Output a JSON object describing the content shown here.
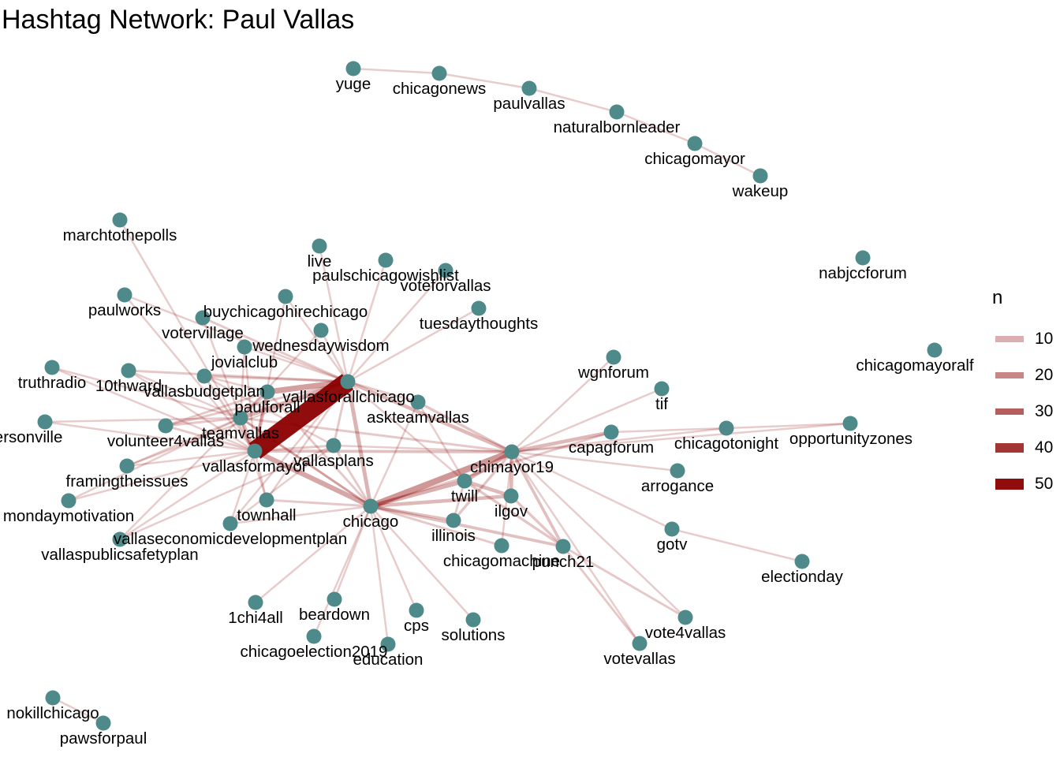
{
  "title": "Hashtag Network: Paul Vallas",
  "node_color": "#4f8a8b",
  "edge_color": "#8b0000",
  "legend": {
    "title": "n",
    "entries": [
      {
        "label": "10",
        "value": 10
      },
      {
        "label": "20",
        "value": 20
      },
      {
        "label": "30",
        "value": 30
      },
      {
        "label": "40",
        "value": 40
      },
      {
        "label": "50",
        "value": 50
      }
    ]
  },
  "nodes": [
    {
      "id": "yuge",
      "label": "yuge"
    },
    {
      "id": "chicagonews",
      "label": "chicagonews"
    },
    {
      "id": "paulvallas",
      "label": "paulvallas"
    },
    {
      "id": "naturalbornleader",
      "label": "naturalbornleader"
    },
    {
      "id": "chicagomayor",
      "label": "chicagomayor"
    },
    {
      "id": "wakeup",
      "label": "wakeup"
    },
    {
      "id": "marchtothepolls",
      "label": "marchtothepolls"
    },
    {
      "id": "live",
      "label": "live"
    },
    {
      "id": "paulschicagowishlist",
      "label": "paulschicagowishlist"
    },
    {
      "id": "voteforvallas",
      "label": "voteforvallas"
    },
    {
      "id": "nabjccforum",
      "label": "nabjccforum"
    },
    {
      "id": "paulworks",
      "label": "paulworks"
    },
    {
      "id": "buychicagohirechicago",
      "label": "buychicagohirechicago"
    },
    {
      "id": "tuesdaythoughts",
      "label": "tuesdaythoughts"
    },
    {
      "id": "votervillage",
      "label": "votervillage"
    },
    {
      "id": "wednesdaywisdom",
      "label": "wednesdaywisdom"
    },
    {
      "id": "chicagomayoralf",
      "label": "chicagomayoralf"
    },
    {
      "id": "truthradio",
      "label": "truthradio"
    },
    {
      "id": "jovialclub",
      "label": "jovialclub"
    },
    {
      "id": "wgnforum",
      "label": "wgnforum"
    },
    {
      "id": "10thward",
      "label": "10thward"
    },
    {
      "id": "vallasbudgetplan",
      "label": "vallasbudgetplan"
    },
    {
      "id": "vallasforallchicago",
      "label": "vallasforallchicago"
    },
    {
      "id": "tif",
      "label": "tif"
    },
    {
      "id": "paulforall",
      "label": "paulforall"
    },
    {
      "id": "askteamvallas",
      "label": "askteamvallas"
    },
    {
      "id": "andersonville",
      "label": "andersonville"
    },
    {
      "id": "volunteer4vallas",
      "label": "volunteer4vallas"
    },
    {
      "id": "teamvallas",
      "label": "teamvallas"
    },
    {
      "id": "opportunityzones",
      "label": "opportunityzones"
    },
    {
      "id": "chicagotonight",
      "label": "chicagotonight"
    },
    {
      "id": "capagforum",
      "label": "capagforum"
    },
    {
      "id": "vallasplans",
      "label": "vallasplans"
    },
    {
      "id": "vallasformayor",
      "label": "vallasformayor"
    },
    {
      "id": "chimayor19",
      "label": "chimayor19"
    },
    {
      "id": "framingtheissues",
      "label": "framingtheissues"
    },
    {
      "id": "arrogance",
      "label": "arrogance"
    },
    {
      "id": "twill",
      "label": "twill"
    },
    {
      "id": "mondaymotivation",
      "label": "mondaymotivation"
    },
    {
      "id": "ilgov",
      "label": "ilgov"
    },
    {
      "id": "townhall",
      "label": "townhall"
    },
    {
      "id": "chicago",
      "label": "chicago"
    },
    {
      "id": "illinois",
      "label": "illinois"
    },
    {
      "id": "vallaseconomicdevelopmentplan",
      "label": "vallaseconomicdevelopmentplan"
    },
    {
      "id": "gotv",
      "label": "gotv"
    },
    {
      "id": "chicagomachine",
      "label": "chicagomachine"
    },
    {
      "id": "punch21",
      "label": "punch21"
    },
    {
      "id": "vallaspublicsafetyplan",
      "label": "vallaspublicsafetyplan"
    },
    {
      "id": "electionday",
      "label": "electionday"
    },
    {
      "id": "1chi4all",
      "label": "1chi4all"
    },
    {
      "id": "beardown",
      "label": "beardown"
    },
    {
      "id": "cps",
      "label": "cps"
    },
    {
      "id": "vote4vallas",
      "label": "vote4vallas"
    },
    {
      "id": "solutions",
      "label": "solutions"
    },
    {
      "id": "chicagoelection2019",
      "label": "chicagoelection2019"
    },
    {
      "id": "education",
      "label": "education"
    },
    {
      "id": "votevallas",
      "label": "votevallas"
    },
    {
      "id": "nokillchicago",
      "label": "nokillchicago"
    },
    {
      "id": "pawsforpaul",
      "label": "pawsforpaul"
    }
  ],
  "edges": [
    {
      "source": "yuge",
      "target": "chicagonews",
      "n": 3
    },
    {
      "source": "chicagonews",
      "target": "paulvallas",
      "n": 3
    },
    {
      "source": "paulvallas",
      "target": "naturalbornleader",
      "n": 3
    },
    {
      "source": "naturalbornleader",
      "target": "chicagomayor",
      "n": 3
    },
    {
      "source": "chicagomayor",
      "target": "wakeup",
      "n": 3
    },
    {
      "source": "nokillchicago",
      "target": "pawsforpaul",
      "n": 3
    },
    {
      "source": "vallasforallchicago",
      "target": "vallasformayor",
      "n": 55
    },
    {
      "source": "vallasforallchicago",
      "target": "paulforall",
      "n": 14
    },
    {
      "source": "vallasforallchicago",
      "target": "teamvallas",
      "n": 10
    },
    {
      "source": "vallasforallchicago",
      "target": "chicago",
      "n": 9
    },
    {
      "source": "vallasforallchicago",
      "target": "chimayor19",
      "n": 8
    },
    {
      "source": "vallasforallchicago",
      "target": "askteamvallas",
      "n": 4
    },
    {
      "source": "vallasforallchicago",
      "target": "live",
      "n": 3
    },
    {
      "source": "vallasforallchicago",
      "target": "paulschicagowishlist",
      "n": 3
    },
    {
      "source": "vallasforallchicago",
      "target": "voteforvallas",
      "n": 3
    },
    {
      "source": "vallasforallchicago",
      "target": "tuesdaythoughts",
      "n": 3
    },
    {
      "source": "vallasforallchicago",
      "target": "buychicagohirechicago",
      "n": 3
    },
    {
      "source": "vallasforallchicago",
      "target": "wednesdaywisdom",
      "n": 3
    },
    {
      "source": "vallasforallchicago",
      "target": "votervillage",
      "n": 4
    },
    {
      "source": "vallasforallchicago",
      "target": "jovialclub",
      "n": 3
    },
    {
      "source": "vallasforallchicago",
      "target": "10thward",
      "n": 4
    },
    {
      "source": "vallasforallchicago",
      "target": "vallasbudgetplan",
      "n": 4
    },
    {
      "source": "vallasforallchicago",
      "target": "volunteer4vallas",
      "n": 4
    },
    {
      "source": "vallasforallchicago",
      "target": "vallasplans",
      "n": 4
    },
    {
      "source": "vallasforallchicago",
      "target": "framingtheissues",
      "n": 3
    },
    {
      "source": "vallasforallchicago",
      "target": "townhall",
      "n": 3
    },
    {
      "source": "vallasforallchicago",
      "target": "vallaseconomicdevelopmentplan",
      "n": 3
    },
    {
      "source": "vallasforallchicago",
      "target": "paulworks",
      "n": 3
    },
    {
      "source": "vallasforallchicago",
      "target": "twill",
      "n": 3
    },
    {
      "source": "vallasformayor",
      "target": "chicago",
      "n": 12
    },
    {
      "source": "vallasformayor",
      "target": "chimayor19",
      "n": 6
    },
    {
      "source": "vallasformayor",
      "target": "paulforall",
      "n": 8
    },
    {
      "source": "vallasformayor",
      "target": "teamvallas",
      "n": 8
    },
    {
      "source": "vallasformayor",
      "target": "marchtothepolls",
      "n": 3
    },
    {
      "source": "vallasformayor",
      "target": "truthradio",
      "n": 3
    },
    {
      "source": "vallasformayor",
      "target": "andersonville",
      "n": 3
    },
    {
      "source": "vallasformayor",
      "target": "mondaymotivation",
      "n": 3
    },
    {
      "source": "vallasformayor",
      "target": "vallaspublicsafetyplan",
      "n": 3
    },
    {
      "source": "vallasformayor",
      "target": "townhall",
      "n": 3
    },
    {
      "source": "vallasformayor",
      "target": "vallasplans",
      "n": 4
    },
    {
      "source": "vallasformayor",
      "target": "paulworks",
      "n": 3
    },
    {
      "source": "vallasformayor",
      "target": "buychicagohirechicago",
      "n": 3
    },
    {
      "source": "vallasformayor",
      "target": "volunteer4vallas",
      "n": 4
    },
    {
      "source": "vallasformayor",
      "target": "framingtheissues",
      "n": 3
    },
    {
      "source": "vallasformayor",
      "target": "vallaseconomicdevelopmentplan",
      "n": 3
    },
    {
      "source": "vallasformayor",
      "target": "10thward",
      "n": 3
    },
    {
      "source": "vallasformayor",
      "target": "jovialclub",
      "n": 3
    },
    {
      "source": "vallasformayor",
      "target": "vallasbudgetplan",
      "n": 4
    },
    {
      "source": "chicago",
      "target": "chimayor19",
      "n": 16
    },
    {
      "source": "chicago",
      "target": "twill",
      "n": 10
    },
    {
      "source": "chicago",
      "target": "ilgov",
      "n": 8
    },
    {
      "source": "chicago",
      "target": "illinois",
      "n": 6
    },
    {
      "source": "chicago",
      "target": "punch21",
      "n": 6
    },
    {
      "source": "chicago",
      "target": "chicagomachine",
      "n": 4
    },
    {
      "source": "chicago",
      "target": "1chi4all",
      "n": 3
    },
    {
      "source": "chicago",
      "target": "beardown",
      "n": 3
    },
    {
      "source": "chicago",
      "target": "cps",
      "n": 3
    },
    {
      "source": "chicago",
      "target": "solutions",
      "n": 3
    },
    {
      "source": "chicago",
      "target": "chicagoelection2019",
      "n": 3
    },
    {
      "source": "chicago",
      "target": "education",
      "n": 3
    },
    {
      "source": "chicago",
      "target": "townhall",
      "n": 4
    },
    {
      "source": "chicago",
      "target": "vallasplans",
      "n": 4
    },
    {
      "source": "chicago",
      "target": "askteamvallas",
      "n": 3
    },
    {
      "source": "chicago",
      "target": "capagforum",
      "n": 4
    },
    {
      "source": "chicago",
      "target": "paulforall",
      "n": 4
    },
    {
      "source": "chicago",
      "target": "teamvallas",
      "n": 4
    },
    {
      "source": "chicago",
      "target": "vallaseconomicdevelopmentplan",
      "n": 3
    },
    {
      "source": "chimayor19",
      "target": "twill",
      "n": 10
    },
    {
      "source": "chimayor19",
      "target": "ilgov",
      "n": 8
    },
    {
      "source": "chimayor19",
      "target": "illinois",
      "n": 5
    },
    {
      "source": "chimayor19",
      "target": "punch21",
      "n": 6
    },
    {
      "source": "chimayor19",
      "target": "capagforum",
      "n": 8
    },
    {
      "source": "chimayor19",
      "target": "wgnforum",
      "n": 3
    },
    {
      "source": "chimayor19",
      "target": "tif",
      "n": 3
    },
    {
      "source": "chimayor19",
      "target": "chicagotonight",
      "n": 3
    },
    {
      "source": "chimayor19",
      "target": "opportunityzones",
      "n": 3
    },
    {
      "source": "chimayor19",
      "target": "arrogance",
      "n": 3
    },
    {
      "source": "chimayor19",
      "target": "gotv",
      "n": 3
    },
    {
      "source": "chimayor19",
      "target": "chicagomachine",
      "n": 3
    },
    {
      "source": "chimayor19",
      "target": "askteamvallas",
      "n": 5
    },
    {
      "source": "chimayor19",
      "target": "vote4vallas",
      "n": 3
    },
    {
      "source": "chimayor19",
      "target": "votevallas",
      "n": 3
    },
    {
      "source": "chimayor19",
      "target": "teamvallas",
      "n": 4
    },
    {
      "source": "chimayor19",
      "target": "vallasplans",
      "n": 3
    },
    {
      "source": "twill",
      "target": "ilgov",
      "n": 8
    },
    {
      "source": "twill",
      "target": "punch21",
      "n": 5
    },
    {
      "source": "ilgov",
      "target": "punch21",
      "n": 5
    },
    {
      "source": "illinois",
      "target": "twill",
      "n": 4
    },
    {
      "source": "punch21",
      "target": "vote4vallas",
      "n": 4
    },
    {
      "source": "punch21",
      "target": "votevallas",
      "n": 4
    },
    {
      "source": "gotv",
      "target": "electionday",
      "n": 3
    },
    {
      "source": "capagforum",
      "target": "chicagotonight",
      "n": 3
    },
    {
      "source": "chicagotonight",
      "target": "opportunityzones",
      "n": 3
    },
    {
      "source": "paulforall",
      "target": "teamvallas",
      "n": 6
    },
    {
      "source": "paulforall",
      "target": "volunteer4vallas",
      "n": 4
    },
    {
      "source": "paulforall",
      "target": "vallasbudgetplan",
      "n": 3
    },
    {
      "source": "teamvallas",
      "target": "volunteer4vallas",
      "n": 4
    },
    {
      "source": "teamvallas",
      "target": "framingtheissues",
      "n": 3
    },
    {
      "source": "teamvallas",
      "target": "mondaymotivation",
      "n": 3
    },
    {
      "source": "teamvallas",
      "target": "andersonville",
      "n": 3
    },
    {
      "source": "teamvallas",
      "target": "truthradio",
      "n": 3
    },
    {
      "source": "teamvallas",
      "target": "10thward",
      "n": 3
    },
    {
      "source": "teamvallas",
      "target": "vallaspublicsafetyplan",
      "n": 3
    },
    {
      "source": "teamvallas",
      "target": "votervillage",
      "n": 3
    },
    {
      "source": "teamvallas",
      "target": "townhall",
      "n": 3
    },
    {
      "source": "teamvallas",
      "target": "jovialclub",
      "n": 3
    },
    {
      "source": "teamvallas",
      "target": "wednesdaywisdom",
      "n": 3
    },
    {
      "source": "teamvallas",
      "target": "chicago",
      "n": 4
    },
    {
      "source": "vallasplans",
      "target": "vallasbudgetplan",
      "n": 3
    },
    {
      "source": "vallasplans",
      "target": "vallaseconomicdevelopmentplan",
      "n": 3
    },
    {
      "source": "vallasplans",
      "target": "vallaspublicsafetyplan",
      "n": 3
    },
    {
      "source": "askteamvallas",
      "target": "twill",
      "n": 3
    }
  ]
}
